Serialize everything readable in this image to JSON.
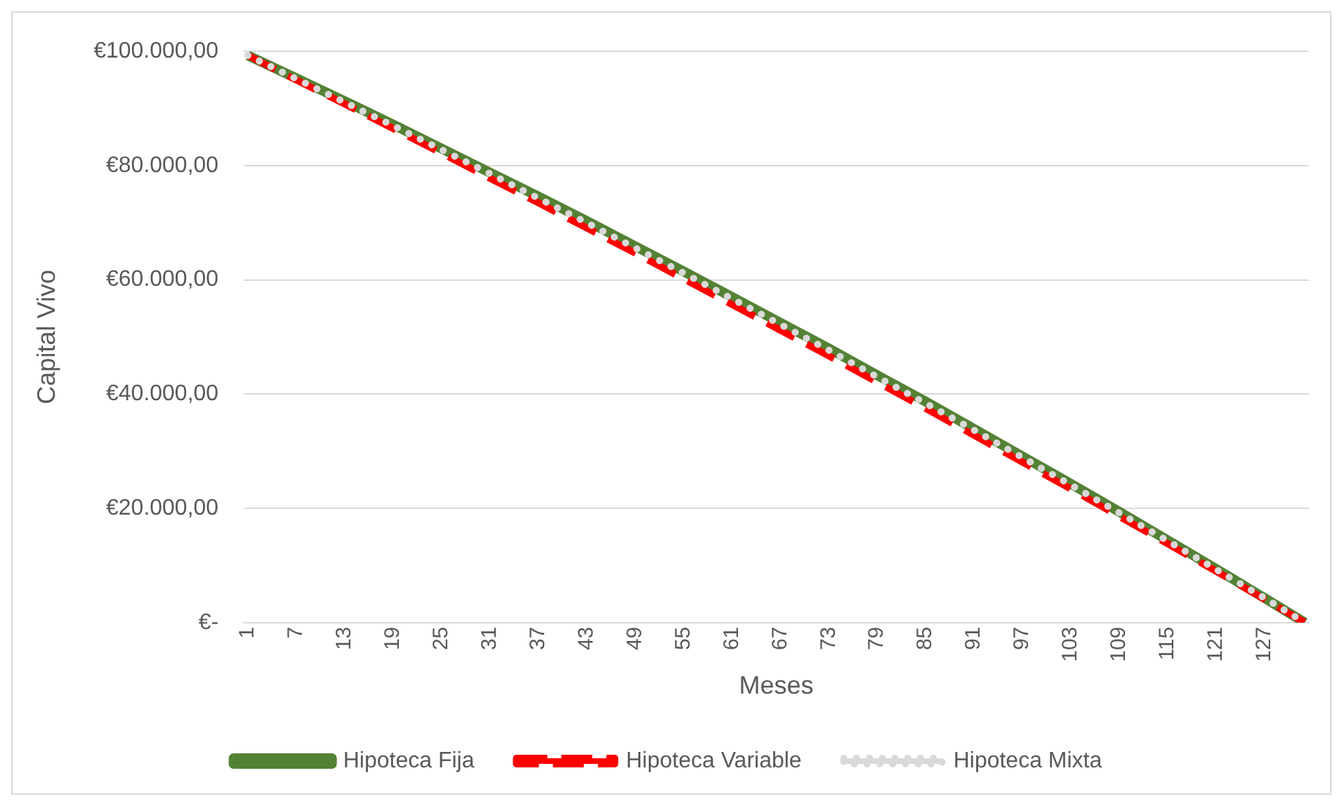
{
  "chart_data": {
    "type": "line",
    "xlabel": "Meses",
    "ylabel": "Capital Vivo",
    "x": [
      1,
      7,
      13,
      19,
      25,
      31,
      37,
      43,
      49,
      55,
      61,
      67,
      73,
      79,
      85,
      91,
      97,
      103,
      109,
      115,
      121,
      127,
      132
    ],
    "xlim": [
      0.5,
      132.5
    ],
    "xticks": [
      1,
      7,
      13,
      19,
      25,
      31,
      37,
      43,
      49,
      55,
      61,
      67,
      73,
      79,
      85,
      91,
      97,
      103,
      109,
      115,
      121,
      127
    ],
    "ylim": [
      0,
      100000
    ],
    "yticks": [
      {
        "value": 0,
        "label": "€-"
      },
      {
        "value": 20000,
        "label": "€20.000,00"
      },
      {
        "value": 40000,
        "label": "€40.000,00"
      },
      {
        "value": 60000,
        "label": "€60.000,00"
      },
      {
        "value": 80000,
        "label": "€80.000,00"
      },
      {
        "value": 100000,
        "label": "€100.000,00"
      }
    ],
    "grid": "y",
    "legend": "bottom",
    "marker": "none",
    "series": [
      {
        "name": "Hipoteca Fija",
        "color": "#548235",
        "line_style": "solid",
        "values": [
          99300,
          95300,
          91300,
          87200,
          83000,
          78800,
          74600,
          70300,
          65900,
          61500,
          57000,
          52500,
          48000,
          43300,
          38700,
          33900,
          29100,
          24300,
          19400,
          14400,
          9400,
          4300,
          0
        ]
      },
      {
        "name": "Hipoteca Variable",
        "color": "#ff0000",
        "line_style": "dashed",
        "values": [
          99300,
          95000,
          90800,
          86500,
          82200,
          77800,
          73500,
          69100,
          64700,
          60200,
          55700,
          51200,
          46700,
          42100,
          37500,
          32800,
          28100,
          23400,
          18600,
          13800,
          9000,
          4100,
          0
        ]
      },
      {
        "name": "Hipoteca Mixta",
        "color": "#d9d9d9",
        "line_style": "dotted",
        "values": [
          99300,
          95200,
          91100,
          87000,
          82800,
          78600,
          74300,
          70000,
          65600,
          61200,
          56700,
          52200,
          47700,
          43000,
          38400,
          33700,
          28900,
          24100,
          19200,
          14300,
          9300,
          4300,
          0
        ]
      }
    ]
  }
}
